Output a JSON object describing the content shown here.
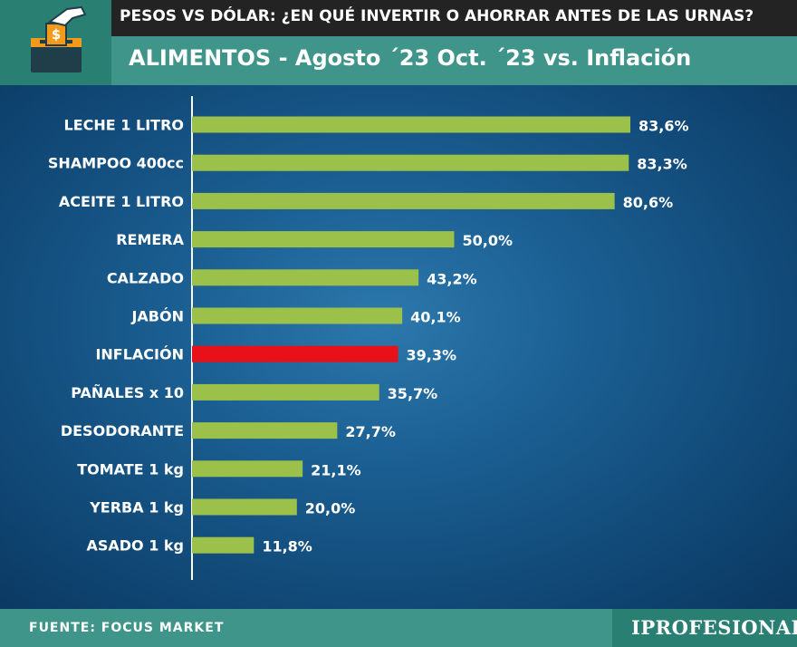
{
  "header": {
    "super_title": "PESOS VS DÓLAR: ¿EN QUÉ INVERTIR O AHORRAR ANTES DE LAS URNAS?",
    "title": "ALIMENTOS - Agosto ´23 Oct. ´23 vs. Inflación",
    "logo_symbol": "$"
  },
  "footer": {
    "source": "FUENTE: FOCUS MARKET",
    "brand": "IPROFESIONAL"
  },
  "colors": {
    "bar": "#9cc14a",
    "highlight": "#e8111a",
    "background": "#17568a",
    "header_dark": "#232323",
    "header_teal": "#3f958a",
    "logo_teal": "#2a7f73",
    "logo_orange": "#f39a1b"
  },
  "chart_data": {
    "type": "bar",
    "orientation": "horizontal",
    "title": "ALIMENTOS - Agosto ´23 Oct. ´23 vs. Inflación",
    "categories": [
      "LECHE 1 LITRO",
      "SHAMPOO 400cc",
      "ACEITE 1 LITRO",
      "REMERA",
      "CALZADO",
      "JABÓN",
      "INFLACIÓN",
      "PAÑALES x 10",
      "DESODORANTE",
      "TOMATE 1 kg",
      "YERBA 1 kg",
      "ASADO 1 kg"
    ],
    "values": [
      83.6,
      83.3,
      80.6,
      50.0,
      43.2,
      40.1,
      39.3,
      35.7,
      27.7,
      21.1,
      20.0,
      11.8
    ],
    "value_labels": [
      "83,6%",
      "83,3%",
      "80,6%",
      "50,0%",
      "43,2%",
      "40,1%",
      "39,3%",
      "35,7%",
      "27,7%",
      "21,1%",
      "20,0%",
      "11,8%"
    ],
    "highlight": "INFLACIÓN",
    "xlim": [
      0,
      100
    ],
    "grid": false,
    "legend": "none"
  }
}
